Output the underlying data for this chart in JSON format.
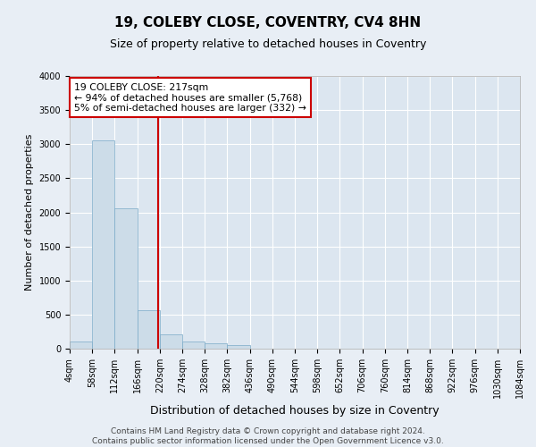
{
  "title1": "19, COLEBY CLOSE, COVENTRY, CV4 8HN",
  "title2": "Size of property relative to detached houses in Coventry",
  "xlabel": "Distribution of detached houses by size in Coventry",
  "ylabel": "Number of detached properties",
  "bar_color": "#ccdce8",
  "bar_edge_color": "#7aaac8",
  "annotation_box_color": "#cc0000",
  "vline_color": "#cc0000",
  "annotation_text": "19 COLEBY CLOSE: 217sqm\n← 94% of detached houses are smaller (5,768)\n5% of semi-detached houses are larger (332) →",
  "vline_x": 217,
  "bin_edges": [
    4,
    58,
    112,
    166,
    220,
    274,
    328,
    382,
    436,
    490,
    544,
    598,
    652,
    706,
    760,
    814,
    868,
    922,
    976,
    1030,
    1084
  ],
  "bar_heights": [
    100,
    3060,
    2060,
    560,
    210,
    110,
    75,
    55,
    0,
    0,
    0,
    0,
    0,
    0,
    0,
    0,
    0,
    0,
    0,
    0
  ],
  "ylim": [
    0,
    4000
  ],
  "yticks": [
    0,
    500,
    1000,
    1500,
    2000,
    2500,
    3000,
    3500,
    4000
  ],
  "footer_text": "Contains HM Land Registry data © Crown copyright and database right 2024.\nContains public sector information licensed under the Open Government Licence v3.0.",
  "background_color": "#e8eef5",
  "plot_bg_color": "#dce6f0",
  "title1_fontsize": 11,
  "title2_fontsize": 9,
  "xlabel_fontsize": 9,
  "ylabel_fontsize": 8,
  "tick_fontsize": 7,
  "footer_fontsize": 6.5
}
